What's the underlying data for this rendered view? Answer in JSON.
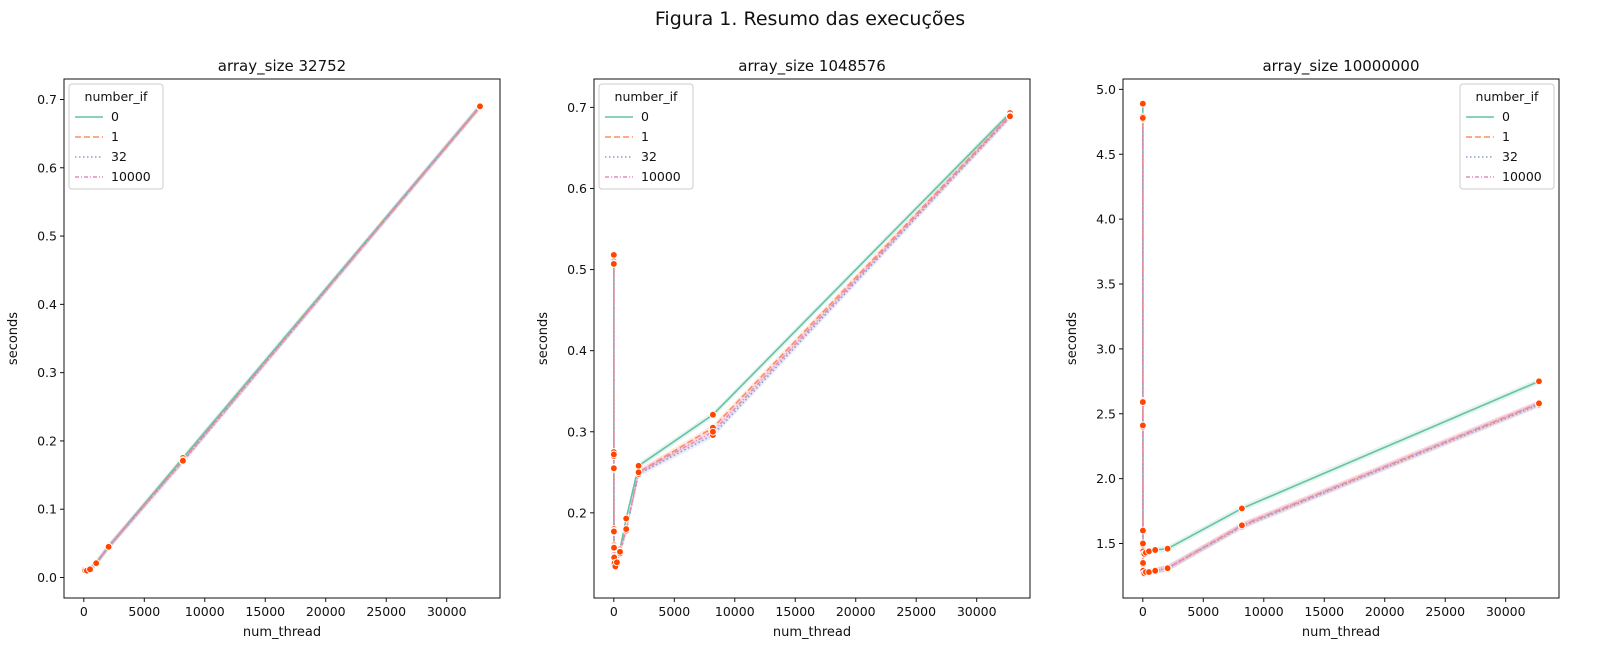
{
  "suptitle": "Figura 1. Resumo das execuções",
  "colors": {
    "marker": "#ff4500",
    "series": [
      "#66c2a5",
      "#fc8d62",
      "#8da0cb",
      "#e78ac3"
    ]
  },
  "chart_data": [
    {
      "type": "line",
      "title": "array_size 32752",
      "xlabel": "num_thread",
      "ylabel": "seconds",
      "xlim": [
        -1638,
        34406
      ],
      "ylim": [
        -0.03,
        0.73
      ],
      "xticks": [
        0,
        5000,
        10000,
        15000,
        20000,
        25000,
        30000
      ],
      "yticks": [
        0.0,
        0.1,
        0.2,
        0.3,
        0.4,
        0.5,
        0.6,
        0.7
      ],
      "xtick_labels": [
        "0",
        "5000",
        "10000",
        "15000",
        "20000",
        "25000",
        "30000"
      ],
      "ytick_labels": [
        "0.0",
        "0.1",
        "0.2",
        "0.3",
        "0.4",
        "0.5",
        "0.6",
        "0.7"
      ],
      "legend_title": "number_if",
      "legend_position": "upper left",
      "x": [
        1,
        2,
        4,
        8,
        16,
        32,
        64,
        128,
        256,
        512,
        1024,
        2048,
        8192,
        32752
      ],
      "series": [
        {
          "name": "0",
          "y": [
            0.016,
            0.015,
            0.014,
            0.013,
            0.012,
            0.011,
            0.011,
            0.01,
            0.01,
            0.012,
            0.021,
            0.045,
            0.175,
            0.69
          ]
        },
        {
          "name": "1",
          "y": [
            0.016,
            0.015,
            0.014,
            0.013,
            0.012,
            0.011,
            0.011,
            0.01,
            0.01,
            0.012,
            0.021,
            0.045,
            0.172,
            0.689
          ]
        },
        {
          "name": "32",
          "y": [
            0.016,
            0.015,
            0.014,
            0.013,
            0.012,
            0.011,
            0.011,
            0.01,
            0.01,
            0.012,
            0.021,
            0.045,
            0.17,
            0.69
          ]
        },
        {
          "name": "10000",
          "y": [
            0.016,
            0.015,
            0.014,
            0.013,
            0.012,
            0.011,
            0.011,
            0.01,
            0.01,
            0.012,
            0.021,
            0.045,
            0.171,
            0.69
          ]
        }
      ]
    },
    {
      "type": "line",
      "title": "array_size 1048576",
      "xlabel": "num_thread",
      "ylabel": "seconds",
      "xlim": [
        -1638,
        34406
      ],
      "ylim": [
        0.095,
        0.735
      ],
      "xticks": [
        0,
        5000,
        10000,
        15000,
        20000,
        25000,
        30000
      ],
      "yticks": [
        0.2,
        0.3,
        0.4,
        0.5,
        0.6,
        0.7
      ],
      "xtick_labels": [
        "0",
        "5000",
        "10000",
        "15000",
        "20000",
        "25000",
        "30000"
      ],
      "ytick_labels": [
        "0.2",
        "0.3",
        "0.4",
        "0.5",
        "0.6",
        "0.7"
      ],
      "legend_title": "number_if",
      "legend_position": "upper left",
      "x": [
        1,
        2,
        4,
        8,
        16,
        32,
        64,
        128,
        256,
        512,
        1024,
        2048,
        8192,
        32752
      ],
      "series": [
        {
          "name": "0",
          "y": [
            0.518,
            0.275,
            0.256,
            0.18,
            0.16,
            0.148,
            0.14,
            0.136,
            0.14,
            0.155,
            0.193,
            0.258,
            0.321,
            0.693
          ]
        },
        {
          "name": "1",
          "y": [
            0.51,
            0.272,
            0.255,
            0.178,
            0.158,
            0.146,
            0.138,
            0.134,
            0.138,
            0.153,
            0.18,
            0.25,
            0.305,
            0.69
          ]
        },
        {
          "name": "32",
          "y": [
            0.508,
            0.27,
            0.254,
            0.176,
            0.156,
            0.144,
            0.137,
            0.133,
            0.137,
            0.15,
            0.178,
            0.248,
            0.296,
            0.688
          ]
        },
        {
          "name": "10000",
          "y": [
            0.507,
            0.272,
            0.255,
            0.177,
            0.157,
            0.145,
            0.138,
            0.134,
            0.139,
            0.152,
            0.18,
            0.25,
            0.3,
            0.689
          ]
        }
      ]
    },
    {
      "type": "line",
      "title": "array_size 10000000",
      "xlabel": "num_thread",
      "ylabel": "seconds",
      "xlim": [
        -1638,
        34406
      ],
      "ylim": [
        1.08,
        5.08
      ],
      "xticks": [
        0,
        5000,
        10000,
        15000,
        20000,
        25000,
        30000
      ],
      "yticks": [
        1.5,
        2.0,
        2.5,
        3.0,
        3.5,
        4.0,
        4.5,
        5.0
      ],
      "xtick_labels": [
        "0",
        "5000",
        "10000",
        "15000",
        "20000",
        "25000",
        "30000"
      ],
      "ytick_labels": [
        "1.5",
        "2.0",
        "2.5",
        "3.0",
        "3.5",
        "4.0",
        "4.5",
        "5.0"
      ],
      "legend_title": "number_if",
      "legend_position": "upper right",
      "x": [
        1,
        2,
        4,
        8,
        16,
        32,
        64,
        128,
        256,
        512,
        1024,
        2048,
        8192,
        32752
      ],
      "series": [
        {
          "name": "0",
          "y": [
            4.89,
            2.6,
            2.41,
            1.6,
            1.48,
            1.44,
            1.42,
            1.42,
            1.43,
            1.44,
            1.45,
            1.46,
            1.77,
            2.75
          ]
        },
        {
          "name": "1",
          "y": [
            4.79,
            2.59,
            2.41,
            1.5,
            1.35,
            1.29,
            1.27,
            1.27,
            1.28,
            1.28,
            1.29,
            1.31,
            1.64,
            2.58
          ]
        },
        {
          "name": "32",
          "y": [
            4.77,
            2.59,
            2.4,
            1.49,
            1.34,
            1.28,
            1.27,
            1.27,
            1.27,
            1.28,
            1.29,
            1.31,
            1.63,
            2.57
          ]
        },
        {
          "name": "10000",
          "y": [
            4.78,
            2.59,
            2.41,
            1.5,
            1.35,
            1.29,
            1.27,
            1.27,
            1.28,
            1.28,
            1.29,
            1.31,
            1.64,
            2.58
          ]
        }
      ]
    }
  ]
}
